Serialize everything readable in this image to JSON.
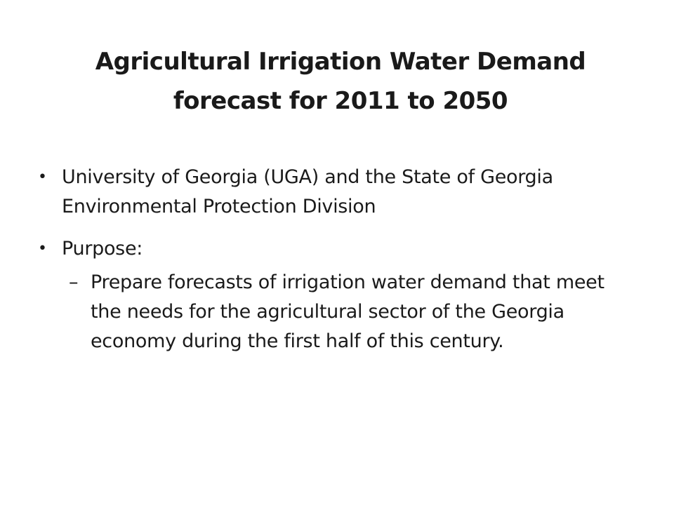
{
  "slide": {
    "title_line1": "Agricultural Irrigation Water Demand",
    "title_line2": "forecast for 2011 to 2050",
    "bullets": [
      {
        "text": "University of Georgia (UGA) and the State of Georgia Environmental Protection Division"
      },
      {
        "text": "Purpose:"
      }
    ],
    "subbullets": [
      {
        "text": "Prepare forecasts of irrigation water demand that meet the needs for the agricultural sector of the Georgia economy during the first half of this century."
      }
    ],
    "bullet_glyph": "•",
    "subbullet_glyph": "–"
  }
}
